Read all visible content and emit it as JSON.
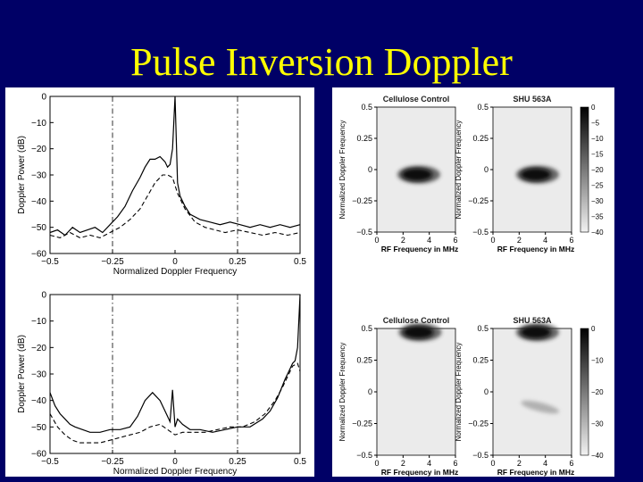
{
  "slide": {
    "title": "Pulse Inversion Doppler",
    "background_color": "#000066",
    "title_color": "#ffff00"
  },
  "chart_data": [
    {
      "type": "line",
      "id": "left-top",
      "xlabel": "Normalized Doppler Frequency",
      "ylabel": "Doppler Power (dB)",
      "xlim": [
        -0.5,
        0.5
      ],
      "ylim": [
        -60,
        0
      ],
      "xticks": [
        "−0.5",
        "−0.25",
        "0",
        "0.25",
        "0.5"
      ],
      "yticks": [
        "0",
        "−10",
        "−20",
        "−30",
        "−40",
        "−50",
        "−60"
      ],
      "vlines": [
        -0.25,
        0.25
      ],
      "series": [
        {
          "style": "solid",
          "x": [
            -0.5,
            -0.47,
            -0.44,
            -0.41,
            -0.38,
            -0.35,
            -0.32,
            -0.29,
            -0.26,
            -0.23,
            -0.2,
            -0.17,
            -0.14,
            -0.12,
            -0.1,
            -0.08,
            -0.06,
            -0.04,
            -0.03,
            -0.02,
            -0.01,
            0,
            0.01,
            0.02,
            0.04,
            0.06,
            0.1,
            0.14,
            0.18,
            0.22,
            0.26,
            0.3,
            0.34,
            0.38,
            0.42,
            0.46,
            0.5
          ],
          "y": [
            -52,
            -51,
            -53,
            -50,
            -52,
            -51,
            -50,
            -52,
            -49,
            -46,
            -42,
            -36,
            -31,
            -27,
            -24,
            -24,
            -23,
            -25,
            -27,
            -26,
            -20,
            0,
            -33,
            -38,
            -42,
            -45,
            -47,
            -48,
            -49,
            -48,
            -49,
            -50,
            -49,
            -50,
            -49,
            -50,
            -49
          ]
        },
        {
          "style": "dashed",
          "x": [
            -0.5,
            -0.46,
            -0.42,
            -0.38,
            -0.34,
            -0.3,
            -0.26,
            -0.22,
            -0.18,
            -0.14,
            -0.11,
            -0.08,
            -0.05,
            -0.03,
            -0.01,
            0.01,
            0.04,
            0.08,
            0.12,
            0.16,
            0.2,
            0.25,
            0.3,
            0.35,
            0.4,
            0.45,
            0.5
          ],
          "y": [
            -53,
            -54,
            -52,
            -54,
            -53,
            -54,
            -52,
            -50,
            -47,
            -43,
            -38,
            -33,
            -30,
            -30,
            -31,
            -37,
            -43,
            -48,
            -50,
            -51,
            -52,
            -51,
            -52,
            -53,
            -52,
            -53,
            -52
          ]
        }
      ]
    },
    {
      "type": "line",
      "id": "left-bottom",
      "xlabel": "Normalized Doppler Frequency",
      "ylabel": "Doppler Power (dB)",
      "xlim": [
        -0.5,
        0.5
      ],
      "ylim": [
        -60,
        0
      ],
      "xticks": [
        "−0.5",
        "−0.25",
        "0",
        "0.25",
        "0.5"
      ],
      "yticks": [
        "0",
        "−10",
        "−20",
        "−30",
        "−40",
        "−50",
        "−60"
      ],
      "vlines": [
        -0.25,
        0.25
      ],
      "series": [
        {
          "style": "solid",
          "x": [
            -0.5,
            -0.48,
            -0.46,
            -0.44,
            -0.42,
            -0.4,
            -0.37,
            -0.34,
            -0.3,
            -0.26,
            -0.22,
            -0.18,
            -0.15,
            -0.12,
            -0.09,
            -0.06,
            -0.04,
            -0.02,
            -0.01,
            0,
            0.01,
            0.03,
            0.06,
            0.1,
            0.15,
            0.2,
            0.25,
            0.3,
            0.35,
            0.38,
            0.41,
            0.44,
            0.46,
            0.47,
            0.48,
            0.49,
            0.5
          ],
          "y": [
            -37,
            -42,
            -45,
            -47,
            -49,
            -50,
            -51,
            -52,
            -52,
            -51,
            -51,
            -50,
            -46,
            -40,
            -37,
            -40,
            -44,
            -48,
            -36,
            -50,
            -47,
            -49,
            -51,
            -51,
            -52,
            -51,
            -50,
            -50,
            -47,
            -44,
            -39,
            -32,
            -28,
            -26,
            -25,
            -20,
            0
          ]
        },
        {
          "style": "dashed",
          "x": [
            -0.5,
            -0.47,
            -0.44,
            -0.41,
            -0.38,
            -0.34,
            -0.3,
            -0.26,
            -0.22,
            -0.18,
            -0.14,
            -0.1,
            -0.06,
            -0.03,
            0,
            0.03,
            0.07,
            0.12,
            0.17,
            0.22,
            0.27,
            0.32,
            0.36,
            0.4,
            0.43,
            0.45,
            0.47,
            0.49,
            0.5
          ],
          "y": [
            -45,
            -50,
            -53,
            -55,
            -56,
            -56,
            -56,
            -55,
            -54,
            -53,
            -52,
            -50,
            -49,
            -51,
            -53,
            -52,
            -52,
            -52,
            -51,
            -50,
            -50,
            -48,
            -45,
            -40,
            -35,
            -31,
            -27,
            -26,
            -29
          ]
        }
      ]
    },
    {
      "type": "heatmap",
      "id": "right-top-control",
      "title": "Cellulose Control",
      "xlabel": "RF Frequency in MHz",
      "ylabel": "Normalized Doppler Frequency",
      "xticks": [
        "0",
        "2",
        "4",
        "6"
      ],
      "yticks": [
        "0.5",
        "0.25",
        "0",
        "−0.25",
        "−0.5"
      ],
      "blobs": [
        {
          "x": 3.2,
          "y": -0.04
        }
      ]
    },
    {
      "type": "heatmap",
      "id": "right-top-shu",
      "title": "SHU 563A",
      "xlabel": "RF Frequency in MHz",
      "ylabel": "Normalized Doppler Frequency",
      "xticks": [
        "0",
        "2",
        "4",
        "6"
      ],
      "yticks": [
        "0.5",
        "0.25",
        "0",
        "−0.25",
        "−0.5"
      ],
      "colorbar_ticks": [
        "0",
        "−5",
        "−10",
        "−15",
        "−20",
        "−25",
        "−30",
        "−35",
        "−40"
      ],
      "blobs": [
        {
          "x": 3.4,
          "y": -0.04
        }
      ]
    },
    {
      "type": "heatmap",
      "id": "right-bottom-control",
      "title": "Cellulose Control",
      "xlabel": "RF Frequency in MHz",
      "ylabel": "Normalized Doppler Frequency",
      "xticks": [
        "0",
        "2",
        "4",
        "6"
      ],
      "yticks": [
        "0.5",
        "0.25",
        "0",
        "−0.25",
        "−0.5"
      ],
      "blobs": [
        {
          "x": 3.3,
          "y": 0.47
        }
      ]
    },
    {
      "type": "heatmap",
      "id": "right-bottom-shu",
      "title": "SHU 563A",
      "xlabel": "RF Frequency in MHz",
      "ylabel": "Normalized Doppler Frequency",
      "xticks": [
        "0",
        "2",
        "4",
        "6"
      ],
      "yticks": [
        "0.5",
        "0.25",
        "0",
        "−0.25",
        "−0.5"
      ],
      "colorbar_ticks": [
        "0",
        "−10",
        "−20",
        "−30",
        "−40"
      ],
      "blobs": [
        {
          "x": 3.4,
          "y": 0.47
        },
        {
          "x": 3.6,
          "y": -0.12,
          "faint": true
        }
      ]
    }
  ]
}
